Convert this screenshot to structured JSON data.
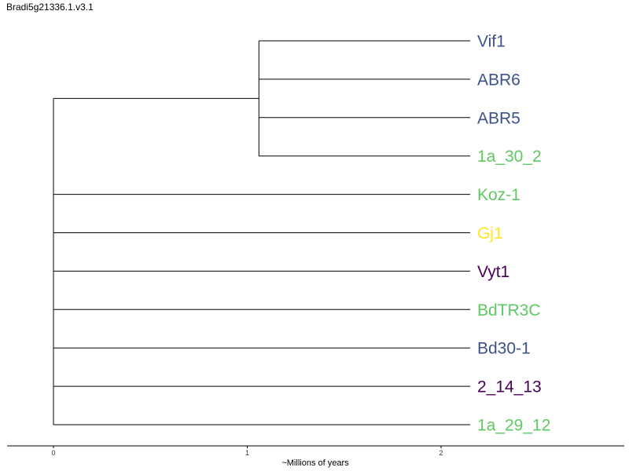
{
  "title": "Bradi5g21336.1.v3.1",
  "axis": {
    "label": "~Millions of years",
    "range": [
      0,
      2.95
    ],
    "ticks": [
      {
        "value": 0,
        "label": "0"
      },
      {
        "value": 1,
        "label": "1"
      },
      {
        "value": 2,
        "label": "2"
      }
    ]
  },
  "colors": {
    "blue": "#3b528b",
    "green": "#5ec962",
    "yellow": "#fde725",
    "purple": "#440154",
    "branch": "#000000"
  },
  "tree": {
    "tip_age": 2.15,
    "root": {
      "age": 0
    },
    "clades": [
      {
        "age": 1.06,
        "members": [
          "Vif1",
          "ABR6",
          "ABR5",
          "1a_30_2"
        ]
      }
    ]
  },
  "leaves": [
    {
      "name": "Vif1",
      "color": "blue"
    },
    {
      "name": "ABR6",
      "color": "blue"
    },
    {
      "name": "ABR5",
      "color": "blue"
    },
    {
      "name": "1a_30_2",
      "color": "green"
    },
    {
      "name": "Koz-1",
      "color": "green"
    },
    {
      "name": "Gj1",
      "color": "yellow"
    },
    {
      "name": "Vyt1",
      "color": "purple"
    },
    {
      "name": "BdTR3C",
      "color": "green"
    },
    {
      "name": "Bd30-1",
      "color": "blue"
    },
    {
      "name": "2_14_13",
      "color": "purple"
    },
    {
      "name": "1a_29_12",
      "color": "green"
    }
  ]
}
